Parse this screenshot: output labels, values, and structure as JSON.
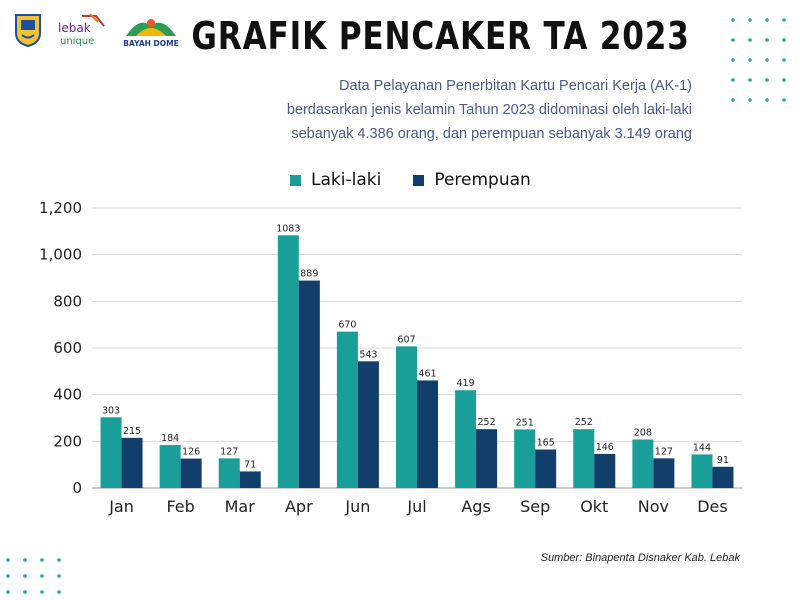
{
  "header": {
    "title": "GRAFIK PENCAKER TA 2023",
    "subtitle_lines": [
      "Data Pelayanan Penerbitan Kartu Pencari Kerja (AK-1)",
      "berdasarkan jenis kelamin Tahun 2023 didominasi oleh laki-laki",
      "sebanyak 4.386 orang, dan perempuan sebanyak 3.149 orang"
    ],
    "logo_text_lebak": "lebak",
    "logo_text_unique": "unique",
    "logo_text_bayah": "BAYAH DOME"
  },
  "colors": {
    "laki": "#1a9e99",
    "perempuan": "#123e6b",
    "grid": "#d9d9d9",
    "dots": "#2aa79b"
  },
  "source": "Sumber: Binapenta Disnaker Kab. Lebak",
  "chart_data": {
    "type": "bar",
    "title": "",
    "xlabel": "",
    "ylabel": "",
    "ylim": [
      0,
      1200
    ],
    "yticks": [
      "0",
      "200",
      "400",
      "600",
      "800",
      "1,000",
      "1,200"
    ],
    "grid": true,
    "legend_position": "top-center",
    "categories": [
      "Jan",
      "Feb",
      "Mar",
      "Apr",
      "Jun",
      "Jul",
      "Ags",
      "Sep",
      "Okt",
      "Nov",
      "Des"
    ],
    "series": [
      {
        "name": "Laki-laki",
        "values": [
          303,
          184,
          127,
          1083,
          670,
          607,
          419,
          251,
          252,
          208,
          144
        ]
      },
      {
        "name": "Perempuan",
        "values": [
          215,
          126,
          71,
          889,
          543,
          461,
          252,
          165,
          146,
          127,
          91
        ]
      }
    ]
  }
}
